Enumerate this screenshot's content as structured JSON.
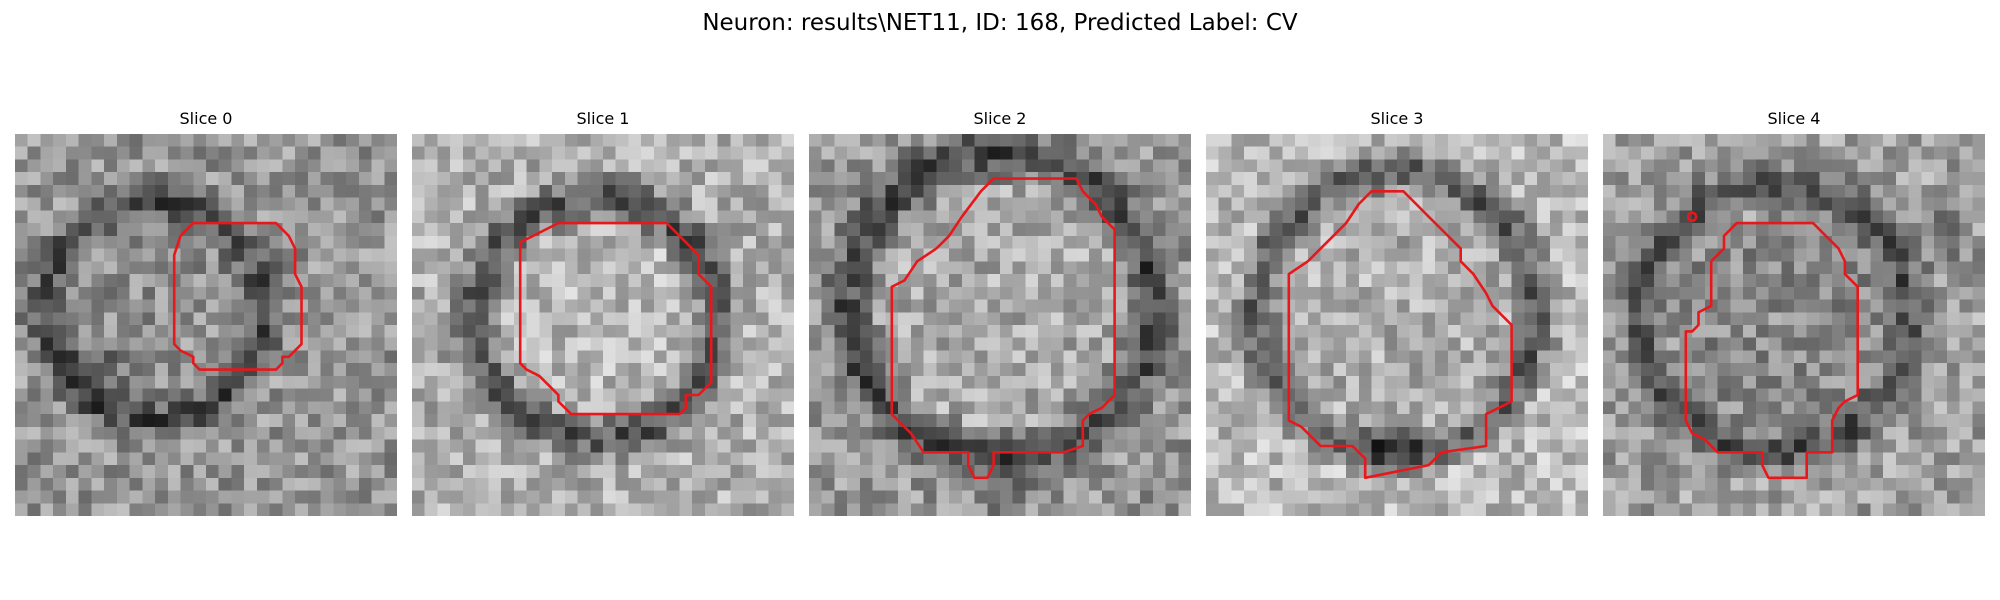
{
  "figure": {
    "title": "Neuron: results\\NET11, ID: 168, Predicted Label: CV",
    "contour_color": "#e8171b"
  },
  "panels": [
    {
      "title": "Slice 0"
    },
    {
      "title": "Slice 1"
    },
    {
      "title": "Slice 2"
    },
    {
      "title": "Slice 3"
    },
    {
      "title": "Slice 4"
    }
  ]
}
